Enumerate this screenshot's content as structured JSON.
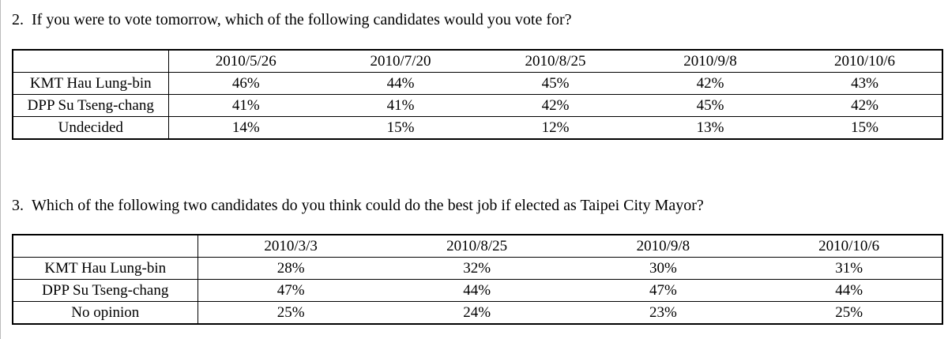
{
  "sections": [
    {
      "number": "2.",
      "question": "If you were to vote tomorrow, which of the following candidates would you vote for?",
      "table": {
        "dates": [
          "2010/5/26",
          "2010/7/20",
          "2010/8/25",
          "2010/9/8",
          "2010/10/6"
        ],
        "rows": [
          {
            "label": "KMT Hau Lung-bin",
            "values": [
              "46%",
              "44%",
              "45%",
              "42%",
              "43%"
            ]
          },
          {
            "label": "DPP Su Tseng-chang",
            "values": [
              "41%",
              "41%",
              "42%",
              "45%",
              "42%"
            ]
          },
          {
            "label": "Undecided",
            "values": [
              "14%",
              "15%",
              "12%",
              "13%",
              "15%"
            ]
          }
        ]
      }
    },
    {
      "number": "3.",
      "question": "Which of the following two candidates do you think could do the best job if elected as Taipei City Mayor?",
      "table": {
        "dates": [
          "2010/3/3",
          "2010/8/25",
          "2010/9/8",
          "2010/10/6"
        ],
        "rows": [
          {
            "label": "KMT Hau Lung-bin",
            "values": [
              "28%",
              "32%",
              "30%",
              "31%"
            ]
          },
          {
            "label": "DPP Su Tseng-chang",
            "values": [
              "47%",
              "44%",
              "47%",
              "44%"
            ]
          },
          {
            "label": "No opinion",
            "values": [
              "25%",
              "24%",
              "23%",
              "25%"
            ]
          }
        ]
      }
    }
  ]
}
